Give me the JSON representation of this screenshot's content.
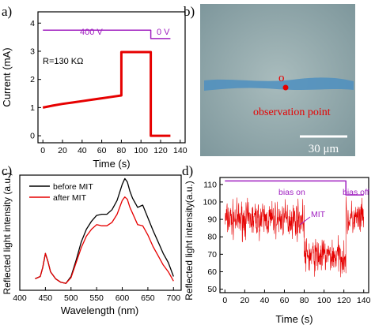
{
  "panel_labels": [
    "a)",
    "b)",
    "c)",
    "d)"
  ],
  "colors": {
    "red": "#e60000",
    "purple": "#a020c0",
    "black": "#000000",
    "micro_bg": "#8da4a8",
    "stripe": "#4d8fc0",
    "white": "#ffffff"
  },
  "chart_data": [
    {
      "type": "line",
      "panel": "a)",
      "xlabel": "Time (s)",
      "ylabel": "Current (mA)",
      "xticks": [
        0,
        20,
        40,
        60,
        80,
        100,
        120,
        140
      ],
      "yticks": [
        0,
        1,
        2,
        3,
        4
      ],
      "xlim": [
        -5,
        145
      ],
      "ylim": [
        -0.25,
        4.4
      ],
      "annotations": {
        "resistance": "R=130 KΩ",
        "bias_high": "400 V",
        "bias_low": "0 V"
      },
      "series": [
        {
          "color": "#e60000",
          "x": [
            0,
            10,
            20,
            30,
            40,
            50,
            60,
            70,
            80,
            80,
            90,
            100,
            110,
            110,
            120,
            130
          ],
          "y": [
            1.0,
            1.07,
            1.13,
            1.18,
            1.23,
            1.28,
            1.33,
            1.38,
            1.43,
            2.97,
            2.97,
            2.97,
            2.97,
            0.0,
            0.0,
            0.0
          ]
        },
        {
          "color": "#a020c0",
          "x": [
            0,
            110,
            110,
            130
          ],
          "y": [
            3.75,
            3.75,
            3.45,
            3.45
          ]
        }
      ]
    },
    {
      "type": "line",
      "panel": "c)",
      "xlabel": "Wavelength (nm)",
      "ylabel": "Reflected light intensity (a.u.)",
      "xticks": [
        400,
        450,
        500,
        550,
        600,
        650,
        700
      ],
      "xlim": [
        400,
        715
      ],
      "ylim": [
        0,
        1
      ],
      "legend_position": "top-left",
      "series": [
        {
          "name": "before MIT",
          "color": "#000000",
          "x": [
            430,
            440,
            445,
            450,
            455,
            460,
            470,
            480,
            490,
            500,
            510,
            520,
            530,
            540,
            550,
            560,
            570,
            580,
            590,
            600,
            605,
            610,
            615,
            620,
            630,
            640,
            650,
            660,
            670,
            680,
            690,
            700
          ],
          "y": [
            0.1,
            0.12,
            0.2,
            0.32,
            0.25,
            0.16,
            0.1,
            0.07,
            0.06,
            0.12,
            0.26,
            0.42,
            0.53,
            0.6,
            0.65,
            0.66,
            0.66,
            0.7,
            0.78,
            0.92,
            0.97,
            0.94,
            0.86,
            0.8,
            0.72,
            0.74,
            0.63,
            0.52,
            0.42,
            0.32,
            0.24,
            0.12
          ]
        },
        {
          "name": "after MIT",
          "color": "#e60000",
          "x": [
            430,
            440,
            445,
            450,
            455,
            460,
            470,
            480,
            490,
            500,
            510,
            520,
            530,
            540,
            550,
            560,
            570,
            580,
            590,
            600,
            605,
            610,
            615,
            620,
            630,
            640,
            650,
            660,
            670,
            680,
            690,
            700
          ],
          "y": [
            0.1,
            0.12,
            0.2,
            0.32,
            0.25,
            0.16,
            0.1,
            0.07,
            0.06,
            0.11,
            0.24,
            0.37,
            0.47,
            0.53,
            0.57,
            0.56,
            0.56,
            0.59,
            0.66,
            0.78,
            0.81,
            0.79,
            0.72,
            0.67,
            0.57,
            0.56,
            0.48,
            0.38,
            0.3,
            0.22,
            0.16,
            0.08
          ]
        }
      ]
    },
    {
      "type": "line",
      "panel": "d)",
      "xlabel": "Time (s)",
      "ylabel": "Reflected light intensity(a.u.)",
      "xticks": [
        0,
        20,
        40,
        60,
        80,
        100,
        120,
        140
      ],
      "yticks": [
        50,
        60,
        70,
        80,
        90,
        100,
        110
      ],
      "xlim": [
        -5,
        145
      ],
      "ylim": [
        48,
        114
      ],
      "annotations": {
        "bias_on": "bias on",
        "bias_off": "bias off",
        "event": "MIT"
      },
      "series": [
        {
          "color": "#e60000",
          "noise_amplitude": 5,
          "segments": [
            {
              "x_range": [
                0,
                80
              ],
              "mean": 90
            },
            {
              "x_range": [
                80,
                122
              ],
              "mean": 69
            },
            {
              "x_range": [
                122,
                140
              ],
              "mean": 90
            }
          ]
        },
        {
          "color": "#a020c0",
          "x": [
            0,
            122,
            122,
            140
          ],
          "y": [
            112,
            112,
            104,
            104
          ]
        }
      ]
    }
  ],
  "micrograph": {
    "panel": "b)",
    "point_label": "o",
    "caption": "observation point",
    "scalebar": "30 μm"
  }
}
